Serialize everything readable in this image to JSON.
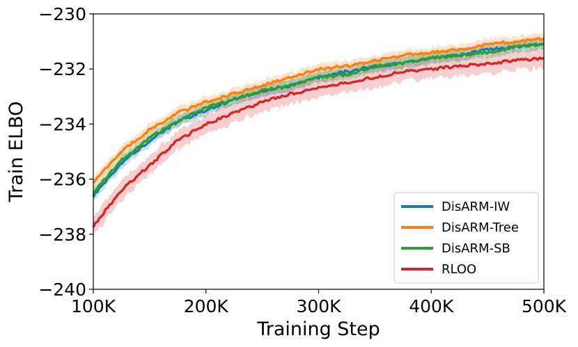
{
  "chart_data": {
    "type": "line",
    "title": "",
    "xlabel": "Training Step",
    "ylabel": "Train ELBO",
    "xlim": [
      100000,
      500000
    ],
    "ylim": [
      -240,
      -230
    ],
    "x_ticks": [
      100000,
      200000,
      300000,
      400000,
      500000
    ],
    "x_tick_labels": [
      "100K",
      "200K",
      "300K",
      "400K",
      "500K"
    ],
    "y_ticks": [
      -240,
      -238,
      -236,
      -234,
      -232,
      -230
    ],
    "y_tick_labels": [
      "−240",
      "−238",
      "−236",
      "−234",
      "−232",
      "−230"
    ],
    "grid": false,
    "legend_position": "bottom-right",
    "x": [
      100000,
      125000,
      150000,
      175000,
      200000,
      225000,
      250000,
      275000,
      300000,
      325000,
      350000,
      375000,
      400000,
      425000,
      450000,
      475000,
      500000
    ],
    "series": [
      {
        "name": "DisARM-IW",
        "color": "#1f77b4",
        "band": 0.2,
        "values": [
          -236.6,
          -235.4,
          -234.6,
          -233.9,
          -233.5,
          -233.1,
          -232.8,
          -232.6,
          -232.3,
          -232.1,
          -231.9,
          -231.8,
          -231.6,
          -231.5,
          -231.3,
          -231.2,
          -231.1
        ]
      },
      {
        "name": "DisARM-Tree",
        "color": "#ff7f0e",
        "band": 0.2,
        "values": [
          -236.1,
          -235.0,
          -234.2,
          -233.6,
          -233.2,
          -232.9,
          -232.6,
          -232.3,
          -232.0,
          -231.9,
          -231.7,
          -231.5,
          -231.4,
          -231.3,
          -231.1,
          -231.0,
          -230.9
        ]
      },
      {
        "name": "DisARM-SB",
        "color": "#2ca02c",
        "band": 0.2,
        "values": [
          -236.5,
          -235.3,
          -234.5,
          -233.9,
          -233.4,
          -233.1,
          -232.8,
          -232.6,
          -232.3,
          -232.2,
          -231.9,
          -231.8,
          -231.6,
          -231.5,
          -231.4,
          -231.2,
          -231.1
        ]
      },
      {
        "name": "RLOO",
        "color": "#d62728",
        "band": 0.35,
        "values": [
          -237.7,
          -236.4,
          -235.5,
          -234.6,
          -234.0,
          -233.6,
          -233.2,
          -232.9,
          -232.7,
          -232.5,
          -232.3,
          -232.1,
          -232.0,
          -231.9,
          -231.8,
          -231.7,
          -231.6
        ]
      }
    ]
  }
}
